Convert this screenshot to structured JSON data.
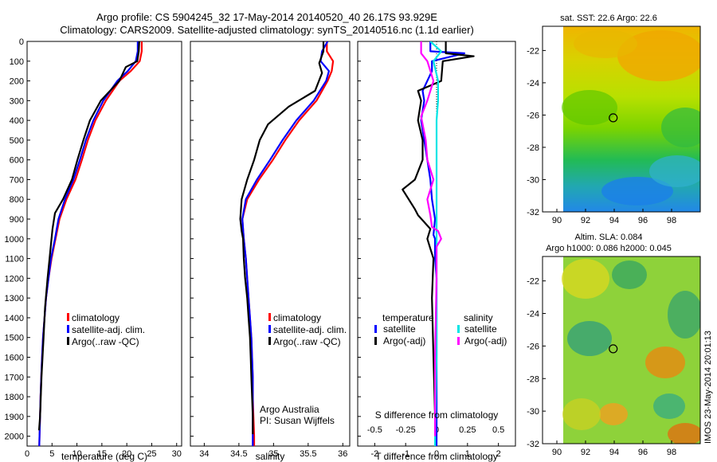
{
  "header": {
    "line1": "Argo profile: CS 5904245_32 17-May-2014 20140520_40 26.17S 93.929E",
    "line2": "Climatology: CARS2009. Satellite-adjusted climatology: synTS_20140516.nc (1.1d earlier)"
  },
  "credit": {
    "line1": "Argo Australia",
    "line2": "PI: Susan Wijffels",
    "stamp": "IMOS 23-May-2014 20:01:13"
  },
  "colors": {
    "climatology": "#ff0000",
    "satellite": "#0000ff",
    "argo": "#000000",
    "sal_satellite": "#00e5e5",
    "sal_argo": "#ff00ff"
  },
  "chart_data": [
    {
      "type": "line",
      "id": "temperature",
      "xlabel": "temperature (deg C)",
      "xlim": [
        0,
        31
      ],
      "ylim": [
        2050,
        0
      ],
      "yticks": [
        0,
        100,
        200,
        300,
        400,
        500,
        600,
        700,
        800,
        900,
        1000,
        1100,
        1200,
        1300,
        1400,
        1500,
        1600,
        1700,
        1800,
        1900,
        2000
      ],
      "xticks": [
        0,
        5,
        10,
        15,
        20,
        25,
        30
      ],
      "legend": [
        "climatology",
        "satellite-adj. clim.",
        "Argo(..raw -QC)"
      ],
      "series": [
        {
          "name": "climatology",
          "color": "#ff0000",
          "points": [
            [
              23,
              0
            ],
            [
              23,
              50
            ],
            [
              22.6,
              100
            ],
            [
              20.8,
              150
            ],
            [
              18.5,
              200
            ],
            [
              15.8,
              300
            ],
            [
              13.7,
              400
            ],
            [
              12.2,
              500
            ],
            [
              11.0,
              600
            ],
            [
              9.7,
              700
            ],
            [
              7.9,
              800
            ],
            [
              6.5,
              900
            ],
            [
              5.7,
              1000
            ],
            [
              4.9,
              1100
            ],
            [
              4.3,
              1200
            ],
            [
              3.8,
              1300
            ],
            [
              3.5,
              1400
            ],
            [
              3.2,
              1500
            ],
            [
              3.0,
              1600
            ],
            [
              2.85,
              1700
            ],
            [
              2.7,
              1800
            ],
            [
              2.6,
              1900
            ],
            [
              2.5,
              2000
            ],
            [
              2.45,
              2050
            ]
          ]
        },
        {
          "name": "satellite-adj. clim.",
          "color": "#0000ff",
          "points": [
            [
              22.2,
              0
            ],
            [
              22.2,
              50
            ],
            [
              21.8,
              100
            ],
            [
              20.2,
              150
            ],
            [
              18.1,
              200
            ],
            [
              15.3,
              300
            ],
            [
              13.3,
              400
            ],
            [
              11.8,
              500
            ],
            [
              10.6,
              600
            ],
            [
              9.3,
              700
            ],
            [
              7.6,
              800
            ],
            [
              6.3,
              900
            ],
            [
              5.6,
              1000
            ],
            [
              4.8,
              1100
            ],
            [
              4.3,
              1200
            ],
            [
              3.8,
              1300
            ],
            [
              3.5,
              1400
            ],
            [
              3.2,
              1500
            ],
            [
              3.0,
              1600
            ],
            [
              2.85,
              1700
            ],
            [
              2.7,
              1800
            ],
            [
              2.6,
              1900
            ],
            [
              2.5,
              2000
            ],
            [
              2.45,
              2050
            ]
          ]
        },
        {
          "name": "Argo(..raw -QC)",
          "color": "#000000",
          "points": [
            [
              22.5,
              0
            ],
            [
              22.4,
              50
            ],
            [
              22.1,
              100
            ],
            [
              19.8,
              130
            ],
            [
              18.5,
              200
            ],
            [
              14.8,
              300
            ],
            [
              12.6,
              400
            ],
            [
              11.3,
              500
            ],
            [
              10.1,
              600
            ],
            [
              9.0,
              700
            ],
            [
              7.2,
              800
            ],
            [
              5.6,
              870
            ],
            [
              5.1,
              950
            ],
            [
              4.5,
              1100
            ],
            [
              4.1,
              1200
            ],
            [
              3.6,
              1350
            ],
            [
              3.3,
              1500
            ],
            [
              2.9,
              1700
            ],
            [
              2.6,
              1900
            ],
            [
              2.4,
              1970
            ]
          ]
        }
      ]
    },
    {
      "type": "line",
      "id": "salinity",
      "xlabel": "salinity",
      "xlim": [
        33.8,
        36.1
      ],
      "ylim": [
        2050,
        0
      ],
      "yticks": [
        0,
        100,
        200,
        300,
        400,
        500,
        600,
        700,
        800,
        900,
        1000,
        1100,
        1200,
        1300,
        1400,
        1500,
        1600,
        1700,
        1800,
        1900,
        2000
      ],
      "xticks": [
        34,
        34.5,
        35,
        35.5,
        36
      ],
      "legend": [
        "climatology",
        "satellite-adj. clim.",
        "Argo(..raw -QC)"
      ],
      "series": [
        {
          "name": "climatology",
          "color": "#ff0000",
          "points": [
            [
              35.77,
              0
            ],
            [
              35.77,
              50
            ],
            [
              35.86,
              100
            ],
            [
              35.84,
              150
            ],
            [
              35.78,
              200
            ],
            [
              35.62,
              300
            ],
            [
              35.37,
              400
            ],
            [
              35.17,
              500
            ],
            [
              34.99,
              600
            ],
            [
              34.79,
              700
            ],
            [
              34.62,
              800
            ],
            [
              34.55,
              900
            ],
            [
              34.57,
              1000
            ],
            [
              34.6,
              1100
            ],
            [
              34.62,
              1200
            ],
            [
              34.64,
              1300
            ],
            [
              34.66,
              1400
            ],
            [
              34.68,
              1500
            ],
            [
              34.69,
              1600
            ],
            [
              34.7,
              1700
            ],
            [
              34.7,
              1800
            ],
            [
              34.71,
              1900
            ],
            [
              34.72,
              2000
            ],
            [
              34.72,
              2050
            ]
          ]
        },
        {
          "name": "satellite-adj. clim.",
          "color": "#0000ff",
          "points": [
            [
              35.78,
              0
            ],
            [
              35.7,
              50
            ],
            [
              35.68,
              100
            ],
            [
              35.8,
              150
            ],
            [
              35.76,
              200
            ],
            [
              35.58,
              300
            ],
            [
              35.33,
              400
            ],
            [
              35.13,
              500
            ],
            [
              34.95,
              600
            ],
            [
              34.76,
              700
            ],
            [
              34.6,
              800
            ],
            [
              34.55,
              900
            ],
            [
              34.57,
              1000
            ],
            [
              34.6,
              1100
            ],
            [
              34.62,
              1200
            ],
            [
              34.64,
              1300
            ],
            [
              34.66,
              1400
            ],
            [
              34.68,
              1500
            ],
            [
              34.69,
              1600
            ],
            [
              34.7,
              1700
            ],
            [
              34.7,
              1800
            ],
            [
              34.7,
              1900
            ],
            [
              34.7,
              2000
            ],
            [
              34.7,
              2050
            ]
          ]
        },
        {
          "name": "Argo(..raw -QC)",
          "color": "#000000",
          "points": [
            [
              35.72,
              0
            ],
            [
              35.72,
              50
            ],
            [
              35.66,
              110
            ],
            [
              35.7,
              160
            ],
            [
              35.6,
              250
            ],
            [
              35.22,
              330
            ],
            [
              34.92,
              420
            ],
            [
              34.8,
              500
            ],
            [
              34.72,
              600
            ],
            [
              34.62,
              700
            ],
            [
              34.54,
              800
            ],
            [
              34.52,
              900
            ],
            [
              34.54,
              960
            ],
            [
              34.56,
              1000
            ],
            [
              34.57,
              1100
            ],
            [
              34.59,
              1200
            ],
            [
              34.62,
              1300
            ],
            [
              34.64,
              1400
            ],
            [
              34.66,
              1500
            ],
            [
              34.67,
              1600
            ],
            [
              34.68,
              1700
            ],
            [
              34.69,
              1800
            ],
            [
              34.7,
              1900
            ],
            [
              34.7,
              1990
            ]
          ]
        }
      ]
    },
    {
      "type": "line",
      "id": "difference",
      "xlabel": "T difference from climatology",
      "xlabel_top": "S difference from climatology",
      "xlim": [
        -2.55,
        2.55
      ],
      "ylim": [
        2050,
        0
      ],
      "xticks": [
        -2,
        -1,
        0,
        1,
        2
      ],
      "xtick_labels_top": [
        "-0.5",
        "-0.25",
        "0",
        "0.25",
        "0.5"
      ],
      "legend_temperature_title": "temperature",
      "legend_salinity_title": "salinity",
      "legend_temperature": [
        "satellite",
        "Argo(-adj)"
      ],
      "legend_salinity": [
        "satellite",
        "Argo(-adj)"
      ],
      "series": [
        {
          "name": "satellite",
          "quantity": "temperature",
          "color": "#0000ff",
          "points": [
            [
              -0.2,
              0
            ],
            [
              -0.2,
              50
            ],
            [
              0.9,
              60
            ],
            [
              -0.15,
              100
            ],
            [
              -0.15,
              150
            ],
            [
              -0.45,
              250
            ],
            [
              -0.4,
              300
            ],
            [
              -0.5,
              400
            ],
            [
              -0.4,
              500
            ],
            [
              -0.3,
              600
            ],
            [
              -0.2,
              700
            ],
            [
              -0.15,
              800
            ],
            [
              -0.05,
              900
            ],
            [
              -0.1,
              980
            ],
            [
              -0.05,
              1000
            ],
            [
              -0.05,
              1100
            ],
            [
              0,
              1200
            ],
            [
              0,
              2050
            ]
          ]
        },
        {
          "name": "Argo(-adj)",
          "quantity": "temperature",
          "color": "#000000",
          "points": [
            [
              0.3,
              0
            ],
            [
              0.3,
              60
            ],
            [
              1.2,
              75
            ],
            [
              0.2,
              100
            ],
            [
              0.15,
              200
            ],
            [
              -0.6,
              250
            ],
            [
              -0.5,
              300
            ],
            [
              -0.6,
              400
            ],
            [
              -0.45,
              500
            ],
            [
              -0.45,
              600
            ],
            [
              -0.7,
              700
            ],
            [
              -1.1,
              750
            ],
            [
              -0.7,
              850
            ],
            [
              -0.6,
              880
            ],
            [
              -0.2,
              950
            ],
            [
              -0.3,
              1000
            ],
            [
              -0.2,
              1050
            ],
            [
              -0.1,
              1100
            ],
            [
              -0.15,
              1300
            ],
            [
              -0.1,
              1600
            ],
            [
              -0.05,
              1900
            ],
            [
              -0.05,
              1970
            ]
          ]
        },
        {
          "name": "satellite",
          "quantity": "salinity",
          "color": "#00e5e5",
          "points": [
            [
              -0.2,
              0
            ],
            [
              0.15,
              50
            ],
            [
              -0.1,
              100
            ],
            [
              0.05,
              200
            ],
            [
              0.05,
              300
            ],
            [
              0.0,
              400
            ],
            [
              0.0,
              600
            ],
            [
              0.0,
              800
            ],
            [
              0.0,
              1000
            ],
            [
              0.0,
              1200
            ],
            [
              0.0,
              1600
            ],
            [
              -0.05,
              2000
            ],
            [
              -0.05,
              2050
            ]
          ]
        },
        {
          "name": "Argo(-adj)",
          "quantity": "salinity",
          "color": "#ff00ff",
          "points": [
            [
              -0.5,
              0
            ],
            [
              -0.5,
              60
            ],
            [
              -0.3,
              100
            ],
            [
              -0.1,
              200
            ],
            [
              -0.3,
              300
            ],
            [
              -0.5,
              380
            ],
            [
              -0.35,
              500
            ],
            [
              -0.3,
              600
            ],
            [
              -0.1,
              700
            ],
            [
              -0.3,
              800
            ],
            [
              -0.2,
              880
            ],
            [
              -0.15,
              940
            ],
            [
              0.05,
              960
            ],
            [
              0.15,
              1000
            ],
            [
              0.0,
              1040
            ],
            [
              0.0,
              1100
            ],
            [
              0.0,
              1200
            ],
            [
              -0.05,
              1600
            ],
            [
              -0.05,
              2000
            ]
          ]
        }
      ]
    },
    {
      "type": "heatmap",
      "id": "sst_map",
      "title": "sat. SST: 22.6 Argo: 22.6",
      "xlim": [
        89,
        100
      ],
      "ylim": [
        -32,
        -20.5
      ],
      "xticks": [
        90,
        92,
        94,
        96,
        98
      ],
      "yticks": [
        -22,
        -24,
        -26,
        -28,
        -30,
        -32
      ],
      "marker": {
        "lon": 93.93,
        "lat": -26.17
      }
    },
    {
      "type": "heatmap",
      "id": "sla_map",
      "title": "Altim. SLA: 0.084",
      "subtitle": "Argo h1000: 0.086 h2000: 0.045",
      "xlim": [
        89,
        100
      ],
      "ylim": [
        -32,
        -20.5
      ],
      "xticks": [
        90,
        92,
        94,
        96,
        98
      ],
      "yticks": [
        -22,
        -24,
        -26,
        -28,
        -30,
        -32
      ],
      "marker": {
        "lon": 93.93,
        "lat": -26.17
      }
    }
  ]
}
